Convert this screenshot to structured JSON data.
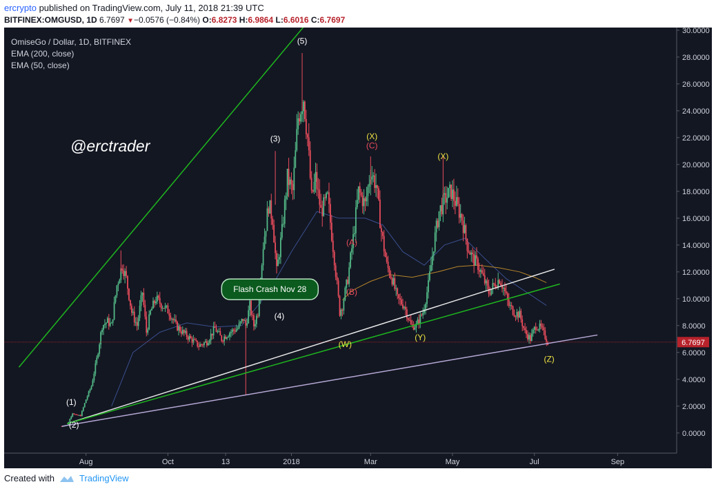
{
  "header": {
    "user": "ercrypto",
    "published": " published on TradingView.com, July 11, 2018 21:39 UTC",
    "symbol": "BITFINEX:OMGUSD, 1D",
    "last": "6.7697",
    "change": "−0.0576 (−0.84%)",
    "o_label": "O:",
    "o": "6.8273",
    "h_label": "H:",
    "h": "6.9864",
    "l_label": "L:",
    "l": "6.6016",
    "c_label": "C:",
    "c": "6.7697"
  },
  "footer": {
    "created_with": "Created with",
    "brand": "TradingView"
  },
  "colors": {
    "background": "#131722",
    "up": "#53b987",
    "down": "#eb4d5c",
    "ema200": "#b8862a",
    "ema50": "#3a4f8e",
    "green_line": "#1eb81e",
    "white_line": "#e8e8e8",
    "lavender_line": "#b7a9d6",
    "price_tag": "#b7222b"
  },
  "chart_data": {
    "type": "candlestick",
    "title": "OmiseGo / Dollar, 1D, BITFINEX",
    "legend": [
      "EMA (200, close)",
      "EMA (50, close)"
    ],
    "watermark": "@erctrader",
    "x_ticks": [
      "Aug",
      "Oct",
      "13",
      "2018",
      "Mar",
      "May",
      "Jul",
      "Sep"
    ],
    "y_ticks": [
      "30.0000",
      "28.0000",
      "26.0000",
      "24.0000",
      "22.0000",
      "20.0000",
      "18.0000",
      "16.0000",
      "14.0000",
      "12.0000",
      "10.0000",
      "8.0000",
      "6.0000",
      "4.0000",
      "2.0000",
      "0.0000"
    ],
    "ylim": [
      -1.5,
      30.2
    ],
    "last_price": 6.7697,
    "last_price_label": "6.7697",
    "x_range": [
      "2017-06-01",
      "2018-10-15"
    ],
    "price_path": [
      [
        "2017-07-14",
        0.5
      ],
      [
        "2017-07-18",
        0.6
      ],
      [
        "2017-07-22",
        1.5
      ],
      [
        "2017-07-25",
        1.3
      ],
      [
        "2017-07-28",
        1.3
      ],
      [
        "2017-08-01",
        2.5
      ],
      [
        "2017-08-05",
        3.5
      ],
      [
        "2017-08-09",
        5.5
      ],
      [
        "2017-08-13",
        8.0
      ],
      [
        "2017-08-17",
        8.3
      ],
      [
        "2017-08-20",
        8.0
      ],
      [
        "2017-08-24",
        11.0
      ],
      [
        "2017-08-28",
        12.5
      ],
      [
        "2017-08-31",
        11.5
      ],
      [
        "2017-09-04",
        9.0
      ],
      [
        "2017-09-08",
        8.0
      ],
      [
        "2017-09-12",
        10.5
      ],
      [
        "2017-09-15",
        7.5
      ],
      [
        "2017-09-18",
        9.0
      ],
      [
        "2017-09-22",
        10.0
      ],
      [
        "2017-09-27",
        9.5
      ],
      [
        "2017-10-02",
        9.0
      ],
      [
        "2017-10-07",
        8.0
      ],
      [
        "2017-10-12",
        7.5
      ],
      [
        "2017-10-18",
        7.0
      ],
      [
        "2017-10-24",
        6.5
      ],
      [
        "2017-10-30",
        6.8
      ],
      [
        "2017-11-05",
        7.8
      ],
      [
        "2017-11-10",
        7.0
      ],
      [
        "2017-11-16",
        7.5
      ],
      [
        "2017-11-22",
        7.8
      ],
      [
        "2017-11-26",
        8.5
      ],
      [
        "2017-11-28",
        8.0
      ],
      [
        "2017-12-01",
        9.5
      ],
      [
        "2017-12-04",
        8.0
      ],
      [
        "2017-12-07",
        9.0
      ],
      [
        "2017-12-11",
        14.0
      ],
      [
        "2017-12-15",
        17.0
      ],
      [
        "2017-12-18",
        16.0
      ],
      [
        "2017-12-21",
        12.0
      ],
      [
        "2017-12-25",
        15.0
      ],
      [
        "2017-12-29",
        19.0
      ],
      [
        "2018-01-02",
        18.0
      ],
      [
        "2018-01-06",
        23.5
      ],
      [
        "2018-01-10",
        25.0
      ],
      [
        "2018-01-13",
        22.0
      ],
      [
        "2018-01-16",
        17.5
      ],
      [
        "2018-01-19",
        19.0
      ],
      [
        "2018-01-23",
        16.5
      ],
      [
        "2018-01-28",
        17.5
      ],
      [
        "2018-02-02",
        13.0
      ],
      [
        "2018-02-06",
        9.0
      ],
      [
        "2018-02-08",
        9.5
      ],
      [
        "2018-02-12",
        11.5
      ],
      [
        "2018-02-16",
        14.5
      ],
      [
        "2018-02-20",
        18.0
      ],
      [
        "2018-02-25",
        17.0
      ],
      [
        "2018-03-01",
        19.5
      ],
      [
        "2018-03-05",
        18.5
      ],
      [
        "2018-03-09",
        15.0
      ],
      [
        "2018-03-13",
        12.5
      ],
      [
        "2018-03-17",
        11.5
      ],
      [
        "2018-03-21",
        10.0
      ],
      [
        "2018-03-26",
        9.5
      ],
      [
        "2018-03-31",
        8.0
      ],
      [
        "2018-04-04",
        8.0
      ],
      [
        "2018-04-09",
        9.0
      ],
      [
        "2018-04-13",
        11.0
      ],
      [
        "2018-04-17",
        14.0
      ],
      [
        "2018-04-21",
        16.5
      ],
      [
        "2018-04-26",
        17.5
      ],
      [
        "2018-04-30",
        18.0
      ],
      [
        "2018-05-04",
        17.0
      ],
      [
        "2018-05-08",
        16.0
      ],
      [
        "2018-05-12",
        14.0
      ],
      [
        "2018-05-16",
        13.0
      ],
      [
        "2018-05-20",
        12.5
      ],
      [
        "2018-05-24",
        11.5
      ],
      [
        "2018-05-28",
        10.5
      ],
      [
        "2018-06-01",
        11.0
      ],
      [
        "2018-06-05",
        11.5
      ],
      [
        "2018-06-08",
        10.8
      ],
      [
        "2018-06-12",
        9.5
      ],
      [
        "2018-06-16",
        9.0
      ],
      [
        "2018-06-20",
        8.8
      ],
      [
        "2018-06-24",
        7.5
      ],
      [
        "2018-06-28",
        7.0
      ],
      [
        "2018-07-02",
        8.0
      ],
      [
        "2018-07-06",
        7.8
      ],
      [
        "2018-07-11",
        6.77
      ]
    ],
    "ema200": [
      [
        "2018-02-08",
        9.9
      ],
      [
        "2018-02-15",
        10.6
      ],
      [
        "2018-03-01",
        11.3
      ],
      [
        "2018-03-15",
        11.8
      ],
      [
        "2018-04-01",
        11.6
      ],
      [
        "2018-04-20",
        12.0
      ],
      [
        "2018-05-05",
        12.4
      ],
      [
        "2018-05-20",
        12.5
      ],
      [
        "2018-06-05",
        12.3
      ],
      [
        "2018-06-20",
        12.0
      ],
      [
        "2018-07-01",
        11.6
      ],
      [
        "2018-07-10",
        11.2
      ]
    ],
    "ema50": [
      [
        "2017-08-20",
        2.0
      ],
      [
        "2017-09-05",
        6.0
      ],
      [
        "2017-09-25",
        7.5
      ],
      [
        "2017-10-15",
        8.2
      ],
      [
        "2017-11-05",
        7.9
      ],
      [
        "2017-11-25",
        8.0
      ],
      [
        "2017-12-15",
        10.5
      ],
      [
        "2018-01-01",
        13.5
      ],
      [
        "2018-01-20",
        16.5
      ],
      [
        "2018-02-05",
        16.0
      ],
      [
        "2018-02-25",
        16.0
      ],
      [
        "2018-03-10",
        15.5
      ],
      [
        "2018-03-25",
        13.5
      ],
      [
        "2018-04-10",
        12.5
      ],
      [
        "2018-04-25",
        14.0
      ],
      [
        "2018-05-10",
        14.5
      ],
      [
        "2018-05-25",
        13.0
      ],
      [
        "2018-06-10",
        11.5
      ],
      [
        "2018-06-25",
        10.5
      ],
      [
        "2018-07-10",
        9.5
      ]
    ],
    "trendlines": [
      {
        "name": "green-channel-upper",
        "color": "#1eb81e",
        "from": [
          "2017-06-12",
          4.9
        ],
        "to": [
          "2018-01-13",
          30.6
        ]
      },
      {
        "name": "white-support",
        "color": "#e8e8e8",
        "from": [
          "2017-07-18",
          0.7
        ],
        "to": [
          "2018-07-16",
          12.2
        ]
      },
      {
        "name": "green-support",
        "color": "#1eb81e",
        "from": [
          "2017-07-18",
          0.7
        ],
        "to": [
          "2018-07-20",
          11.1
        ]
      },
      {
        "name": "lavender-support",
        "color": "#b7a9d6",
        "from": [
          "2017-07-14",
          0.5
        ],
        "to": [
          "2018-08-17",
          7.3
        ]
      }
    ],
    "wave_labels": [
      {
        "text": "(1)",
        "at": [
          "2017-07-21",
          2.1
        ],
        "color": "#ffffff"
      },
      {
        "text": "(2)",
        "at": [
          "2017-07-23",
          0.4
        ],
        "color": "#ffffff"
      },
      {
        "text": "(3)",
        "at": [
          "2017-12-20",
          21.7
        ],
        "color": "#ffffff"
      },
      {
        "text": "(4)",
        "at": [
          "2017-12-23",
          8.5
        ],
        "color": "#ffffff"
      },
      {
        "text": "(5)",
        "at": [
          "2018-01-09",
          29.0
        ],
        "color": "#ffffff"
      },
      {
        "text": "(A)",
        "at": [
          "2018-02-15",
          14.0
        ],
        "color": "#eb4d5c"
      },
      {
        "text": "(B)",
        "at": [
          "2018-02-15",
          10.3
        ],
        "color": "#eb4d5c"
      },
      {
        "text": "(C)",
        "at": [
          "2018-03-02",
          21.2
        ],
        "color": "#eb4d5c"
      },
      {
        "text": "(X)",
        "at": [
          "2018-03-02",
          21.9
        ],
        "color": "#f0e442"
      },
      {
        "text": "(W)",
        "at": [
          "2018-02-10",
          6.4
        ],
        "color": "#f0e442"
      },
      {
        "text": "(Y)",
        "at": [
          "2018-04-07",
          6.9
        ],
        "color": "#f0e442"
      },
      {
        "text": "(X)",
        "at": [
          "2018-04-24",
          20.4
        ],
        "color": "#f0e442"
      },
      {
        "text": "(Z)",
        "at": [
          "2018-07-12",
          5.3
        ],
        "color": "#f0e442"
      }
    ],
    "annotation": {
      "text": "Flash Crash Nov 28",
      "at": [
        "2017-11-28",
        10.7
      ]
    }
  }
}
